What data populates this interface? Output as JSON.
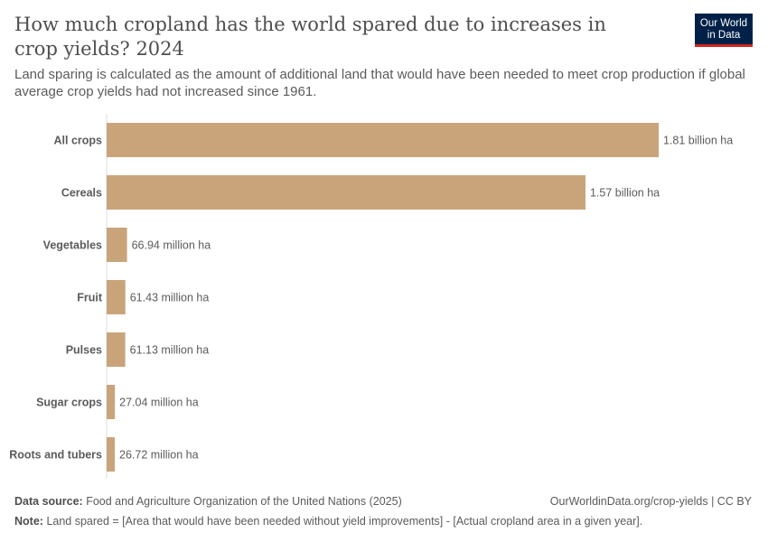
{
  "header": {
    "title": "How much cropland has the world spared due to increases in crop yields? 2024",
    "subtitle": "Land sparing is calculated as the amount of additional land that would have been needed to meet crop production if global average crop yields had not increased since 1961.",
    "logo": "Our World in Data"
  },
  "chart_data": {
    "type": "bar",
    "orientation": "horizontal",
    "title": "How much cropland has the world spared due to increases in crop yields? 2024",
    "unit": "ha",
    "categories": [
      "All crops",
      "Cereals",
      "Vegetables",
      "Fruit",
      "Pulses",
      "Sugar crops",
      "Roots and tubers"
    ],
    "values": [
      1810000000,
      1570000000,
      66940000,
      61430000,
      61130000,
      27040000,
      26720000
    ],
    "labels": [
      "1.81 billion ha",
      "1.57 billion ha",
      "66.94 million ha",
      "61.43 million ha",
      "61.13 million ha",
      "27.04 million ha",
      "26.72 million ha"
    ],
    "bar_color": "#c9a47a",
    "grid": false
  },
  "footer": {
    "source_label": "Data source:",
    "source": "Food and Agriculture Organization of the United Nations (2025)",
    "url": "OurWorldinData.org/crop-yields | CC BY",
    "note_label": "Note:",
    "note": "Land spared = [Area that would have been needed without yield improvements] - [Actual cropland area in a given year]."
  }
}
